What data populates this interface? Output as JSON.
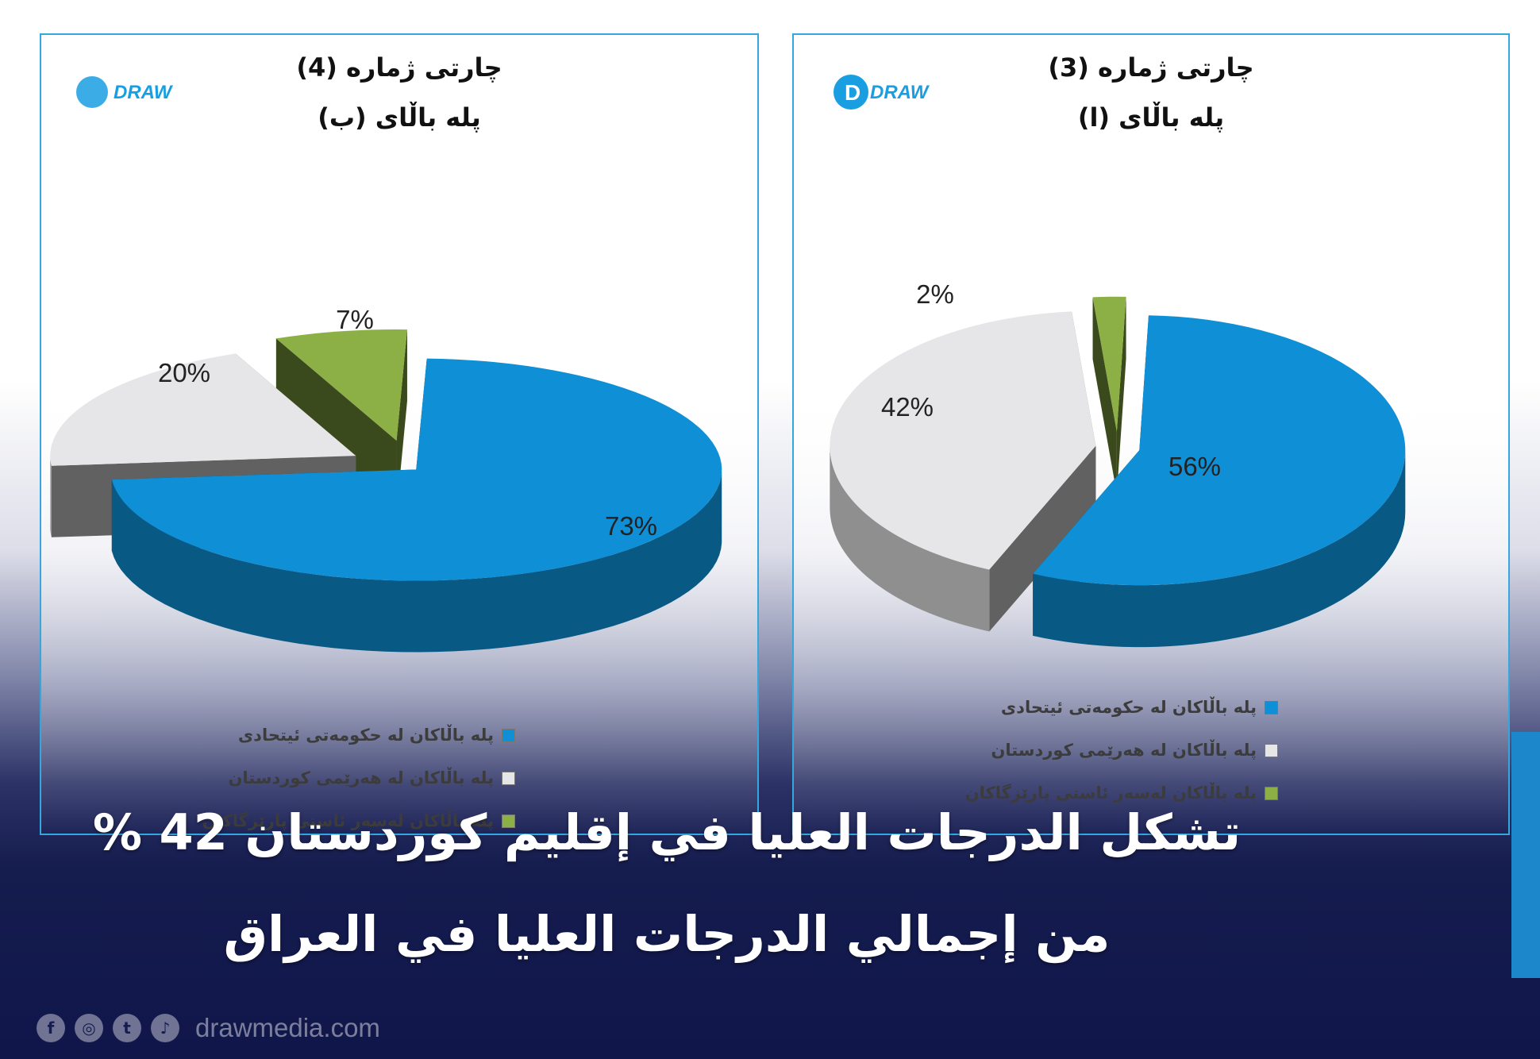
{
  "charts": {
    "left": {
      "title_line1": "چارتی ژمارە (4)",
      "title_line2": "پلە باڵای (ب)",
      "legend": [
        "پلە باڵاکان لە حکومەتی ئیتحادی",
        "پلە باڵاکان لە هەرێمی کوردستان",
        "پلە باڵاکان لەسەر ئاستی پارێزگاکان"
      ]
    },
    "right": {
      "title_line1": "چارتی ژمارە (3)",
      "title_line2": "پلە باڵای (ا)",
      "legend": [
        "پلە باڵاکان لە حکومەتی ئیتحادی",
        "پلە باڵاکان لە هەرێمی کوردستان",
        "پلە باڵاکان لەسەر ئاستی پارێزگاکان"
      ]
    }
  },
  "chart_data": [
    {
      "type": "pie",
      "title": "چارتی ژمارە (3) — پلە باڵای (ا)",
      "categories": [
        "پلە باڵاکان لە حکومەتی ئیتحادی",
        "پلە باڵاکان لە هەرێمی کوردستان",
        "پلە باڵاکان لەسەر ئاستی پارێزگاکان"
      ],
      "values": [
        56,
        42,
        2
      ],
      "labels": [
        "56%",
        "42%",
        "2%"
      ],
      "colors": [
        "#0f8fd6",
        "#e6e6e8",
        "#8cb045"
      ],
      "legend_placement": "bottom"
    },
    {
      "type": "pie",
      "title": "چارتی ژمارە (4) — پلە باڵای (ب)",
      "categories": [
        "پلە باڵاکان لە حکومەتی ئیتحادی",
        "پلە باڵاکان لە هەرێمی کوردستان",
        "پلە باڵاکان لەسەر ئاستی پارێزگاکان"
      ],
      "values": [
        73,
        20,
        7
      ],
      "labels": [
        "73%",
        "20%",
        "7%"
      ],
      "colors": [
        "#0f8fd6",
        "#e6e6e8",
        "#8cb045"
      ],
      "legend_placement": "bottom"
    }
  ],
  "logo": {
    "text": "DRAW"
  },
  "headline": {
    "line1": "تشكل الدرجات العليا في إقليم كوردستان 42 %",
    "line2": "من إجمالي الدرجات العليا في العراق"
  },
  "footer": {
    "site": "drawmedia.com",
    "icons": [
      "facebook-icon",
      "instagram-icon",
      "twitter-icon",
      "tiktok-icon"
    ],
    "icon_glyphs": [
      "f",
      "◎",
      "t",
      "♪"
    ]
  }
}
